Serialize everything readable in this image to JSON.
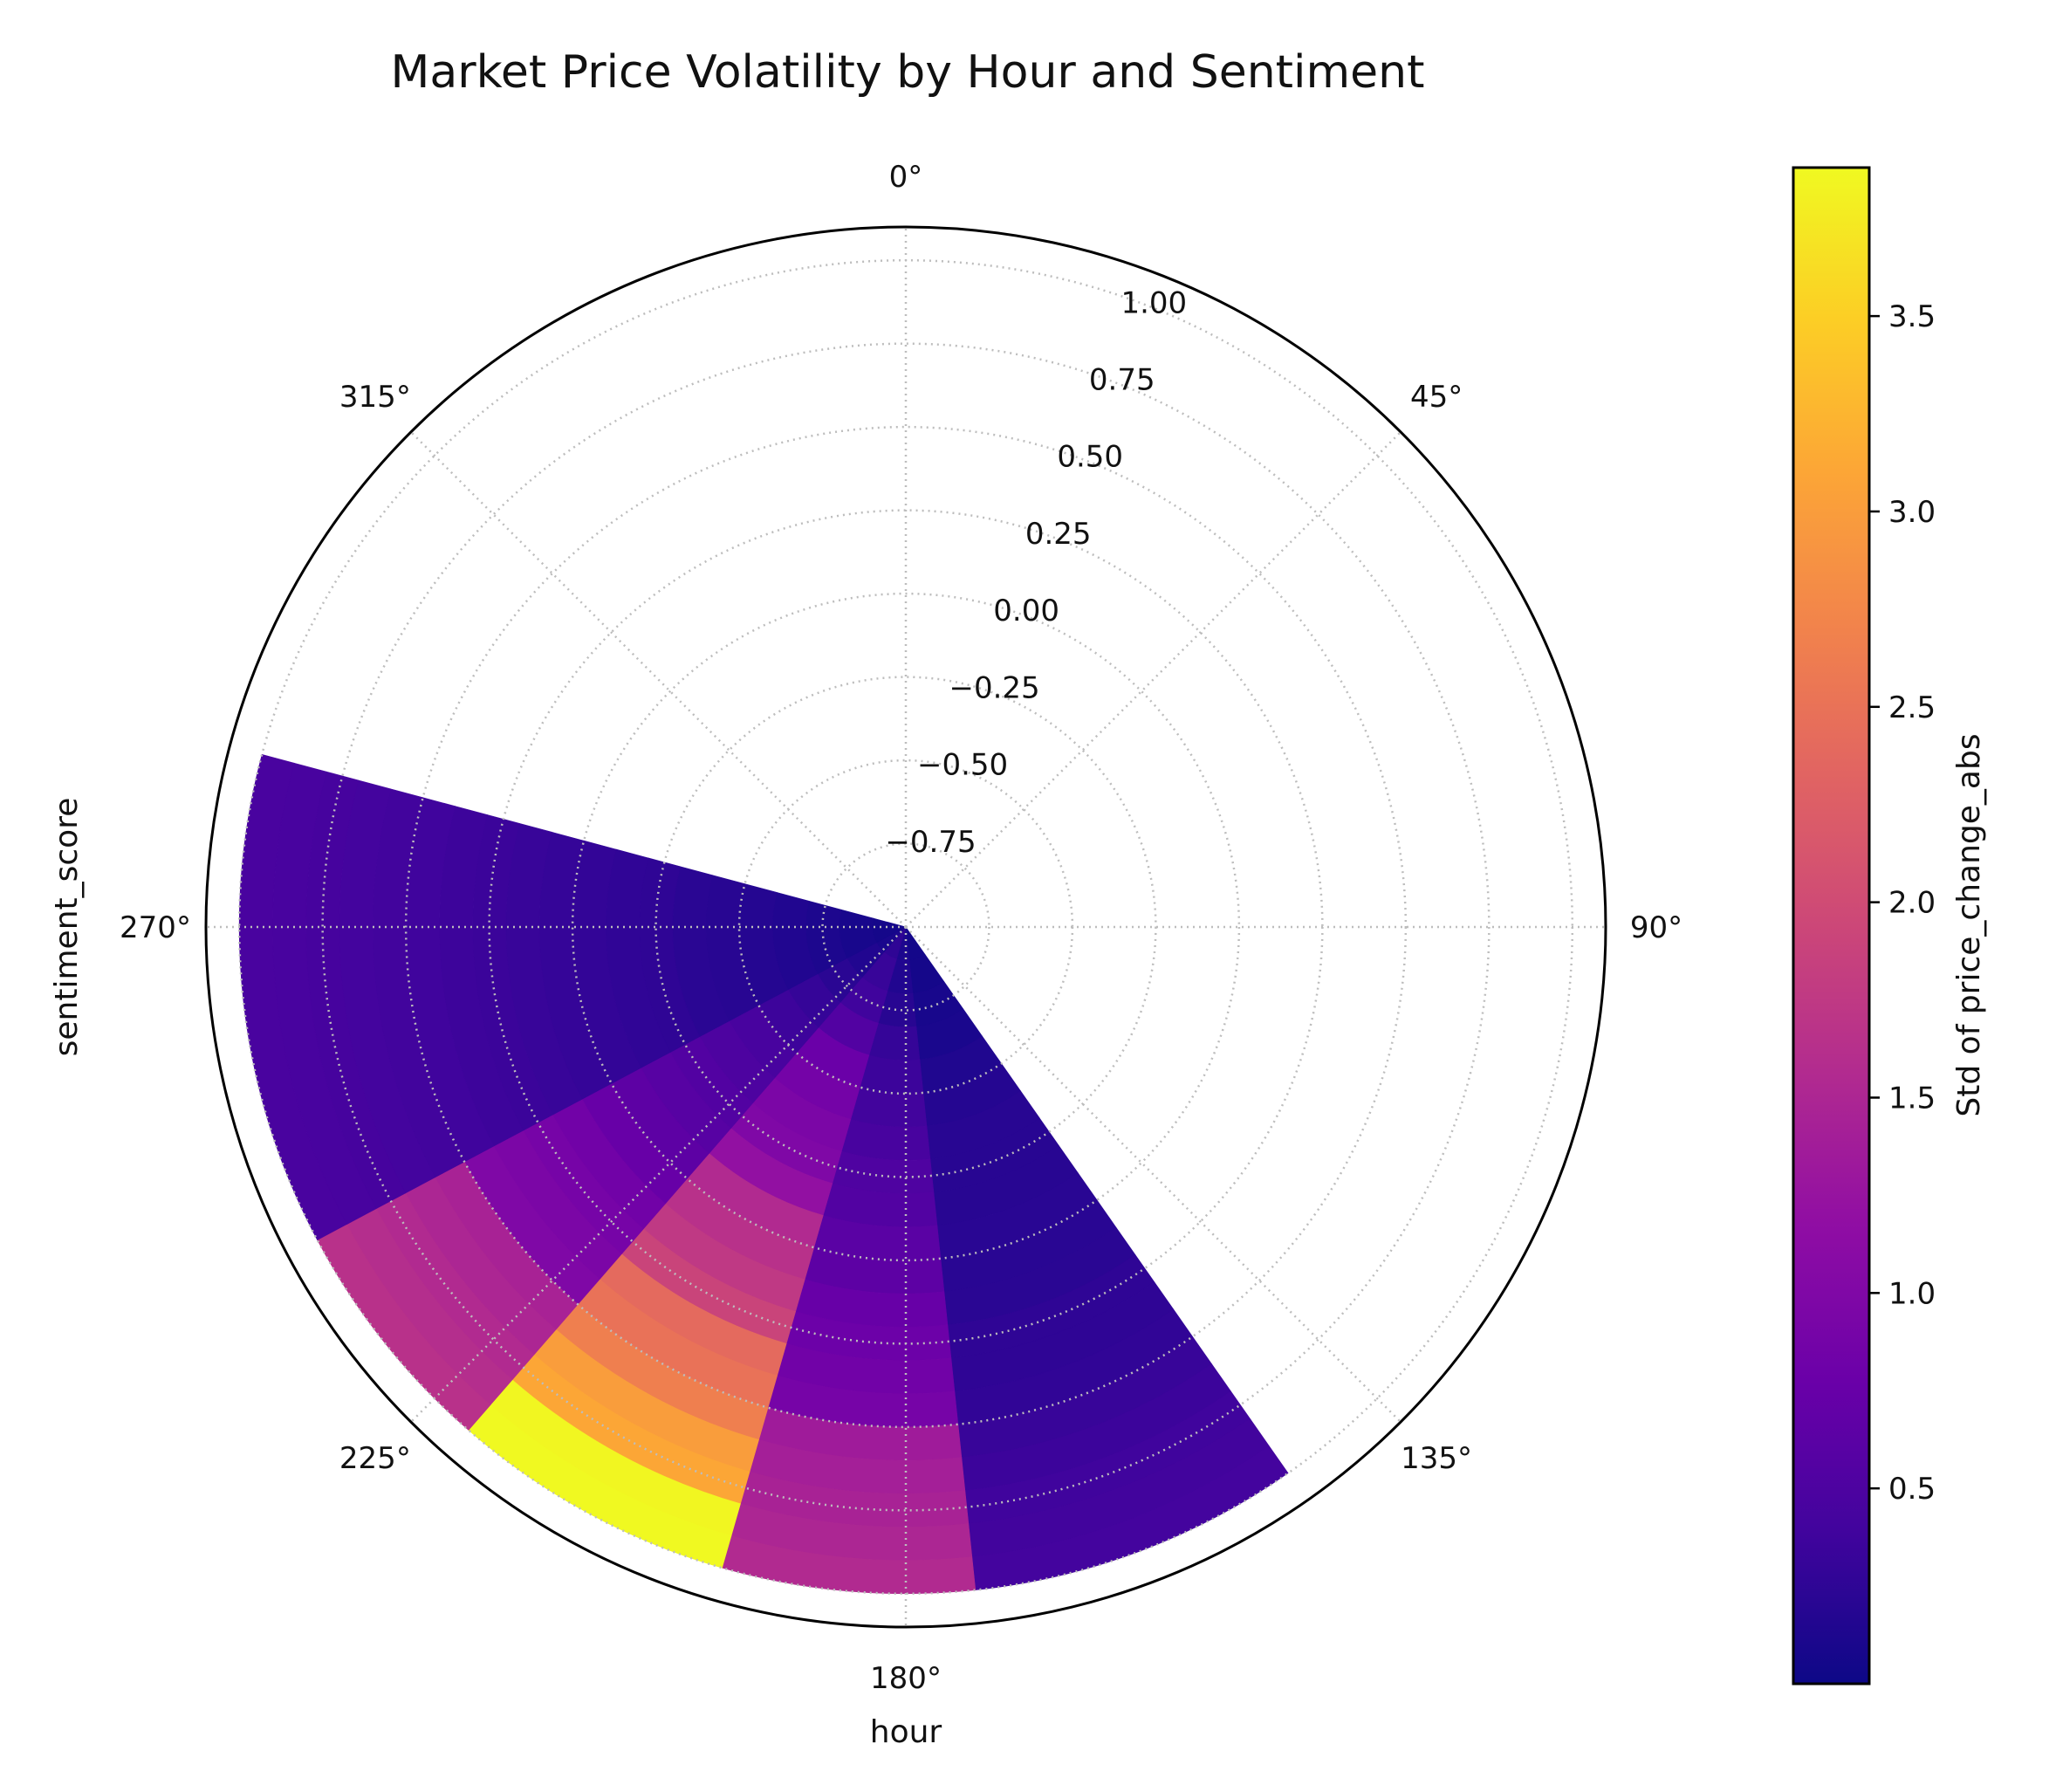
{
  "chart_data": {
    "type": "heatmap",
    "projection": "polar",
    "title": "Market Price Volatility by Hour and Sentiment",
    "xlabel": "hour",
    "ylabel": "sentiment_score",
    "theta_tick_labels": [
      "0°",
      "45°",
      "90°",
      "135°",
      "180°",
      "225°",
      "270°",
      "315°"
    ],
    "r_tick_labels": [
      "−0.75",
      "−0.50",
      "−0.25",
      "0.00",
      "0.25",
      "0.50",
      "0.75",
      "1.00"
    ],
    "r_ticks": [
      -0.75,
      -0.5,
      -0.25,
      0.0,
      0.25,
      0.5,
      0.75,
      1.0
    ],
    "rlim": [
      -1.0,
      1.1
    ],
    "theta_direction": "clockwise",
    "theta_zero_location": "top",
    "grid": true,
    "colormap": "plasma",
    "colorbar": {
      "label": "Std of price_change_abs",
      "tick_labels": [
        "0.5",
        "1.0",
        "1.5",
        "2.0",
        "2.5",
        "3.0",
        "3.5"
      ],
      "ticks": [
        0.5,
        1.0,
        1.5,
        2.0,
        2.5,
        3.0,
        3.5
      ],
      "vmin": 0.0,
      "vmax": 3.88
    },
    "theta_bins_deg": [
      145,
      174,
      196,
      221,
      242,
      285
    ],
    "r_bins": [
      -1.0,
      -0.9,
      -0.8,
      -0.7,
      -0.6,
      -0.5,
      -0.4,
      -0.3,
      -0.2,
      -0.1,
      0.0,
      0.1,
      0.2,
      0.3,
      0.4,
      0.5,
      0.6,
      0.7,
      0.8,
      0.9,
      1.0
    ],
    "values": [
      [
        0.05,
        0.06,
        0.08,
        0.1,
        0.14,
        0.18,
        0.2,
        0.2,
        0.2,
        0.21,
        0.21,
        0.22,
        0.25,
        0.25,
        0.27,
        0.32,
        0.35,
        0.38,
        0.4,
        0.42
      ],
      [
        0.12,
        0.15,
        0.2,
        0.3,
        0.35,
        0.4,
        0.45,
        0.52,
        0.55,
        0.62,
        0.65,
        0.75,
        0.8,
        0.85,
        0.9,
        1.35,
        1.4,
        1.45,
        1.5,
        1.55
      ],
      [
        0.25,
        0.32,
        0.38,
        0.55,
        0.78,
        0.88,
        0.95,
        1.0,
        1.2,
        1.55,
        1.65,
        1.75,
        1.9,
        2.4,
        2.5,
        2.65,
        3.0,
        3.1,
        3.85,
        3.88
      ],
      [
        0.1,
        0.15,
        0.22,
        0.3,
        0.36,
        0.45,
        0.5,
        0.55,
        0.6,
        0.65,
        0.75,
        0.85,
        0.9,
        0.95,
        1.0,
        1.45,
        1.5,
        1.55,
        1.6,
        1.65
      ],
      [
        0.06,
        0.08,
        0.12,
        0.15,
        0.18,
        0.2,
        0.22,
        0.25,
        0.26,
        0.28,
        0.3,
        0.32,
        0.34,
        0.36,
        0.38,
        0.4,
        0.42,
        0.44,
        0.45,
        0.46
      ]
    ]
  }
}
